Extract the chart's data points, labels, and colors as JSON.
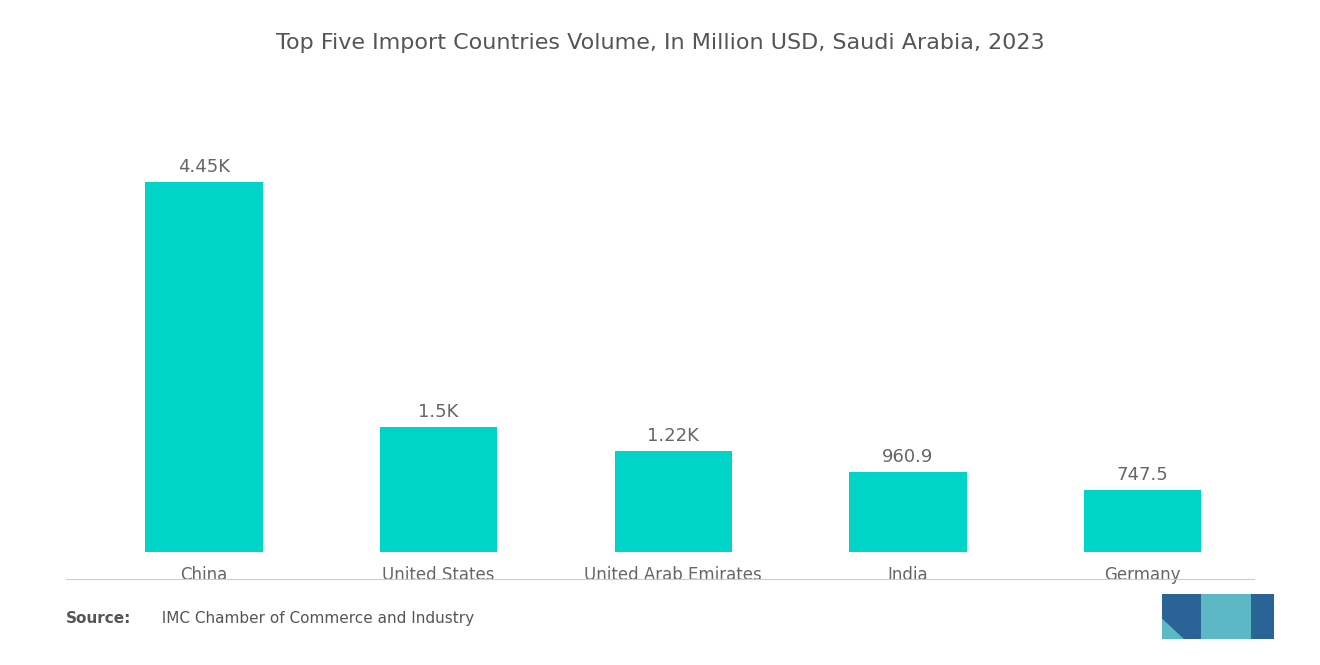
{
  "title": "Top Five Import Countries Volume, In Million USD, Saudi Arabia, 2023",
  "categories": [
    "China",
    "United States",
    "United Arab Emirates",
    "India",
    "Germany"
  ],
  "values": [
    4450,
    1500,
    1220,
    960.9,
    747.5
  ],
  "labels": [
    "4.45K",
    "1.5K",
    "1.22K",
    "960.9",
    "747.5"
  ],
  "bar_color": "#00D4C8",
  "background_color": "#ffffff",
  "title_fontsize": 16,
  "label_fontsize": 13,
  "tick_fontsize": 12,
  "source_bold": "Source:",
  "source_normal": "  IMC Chamber of Commerce and Industry",
  "ylim": [
    0,
    5200
  ]
}
